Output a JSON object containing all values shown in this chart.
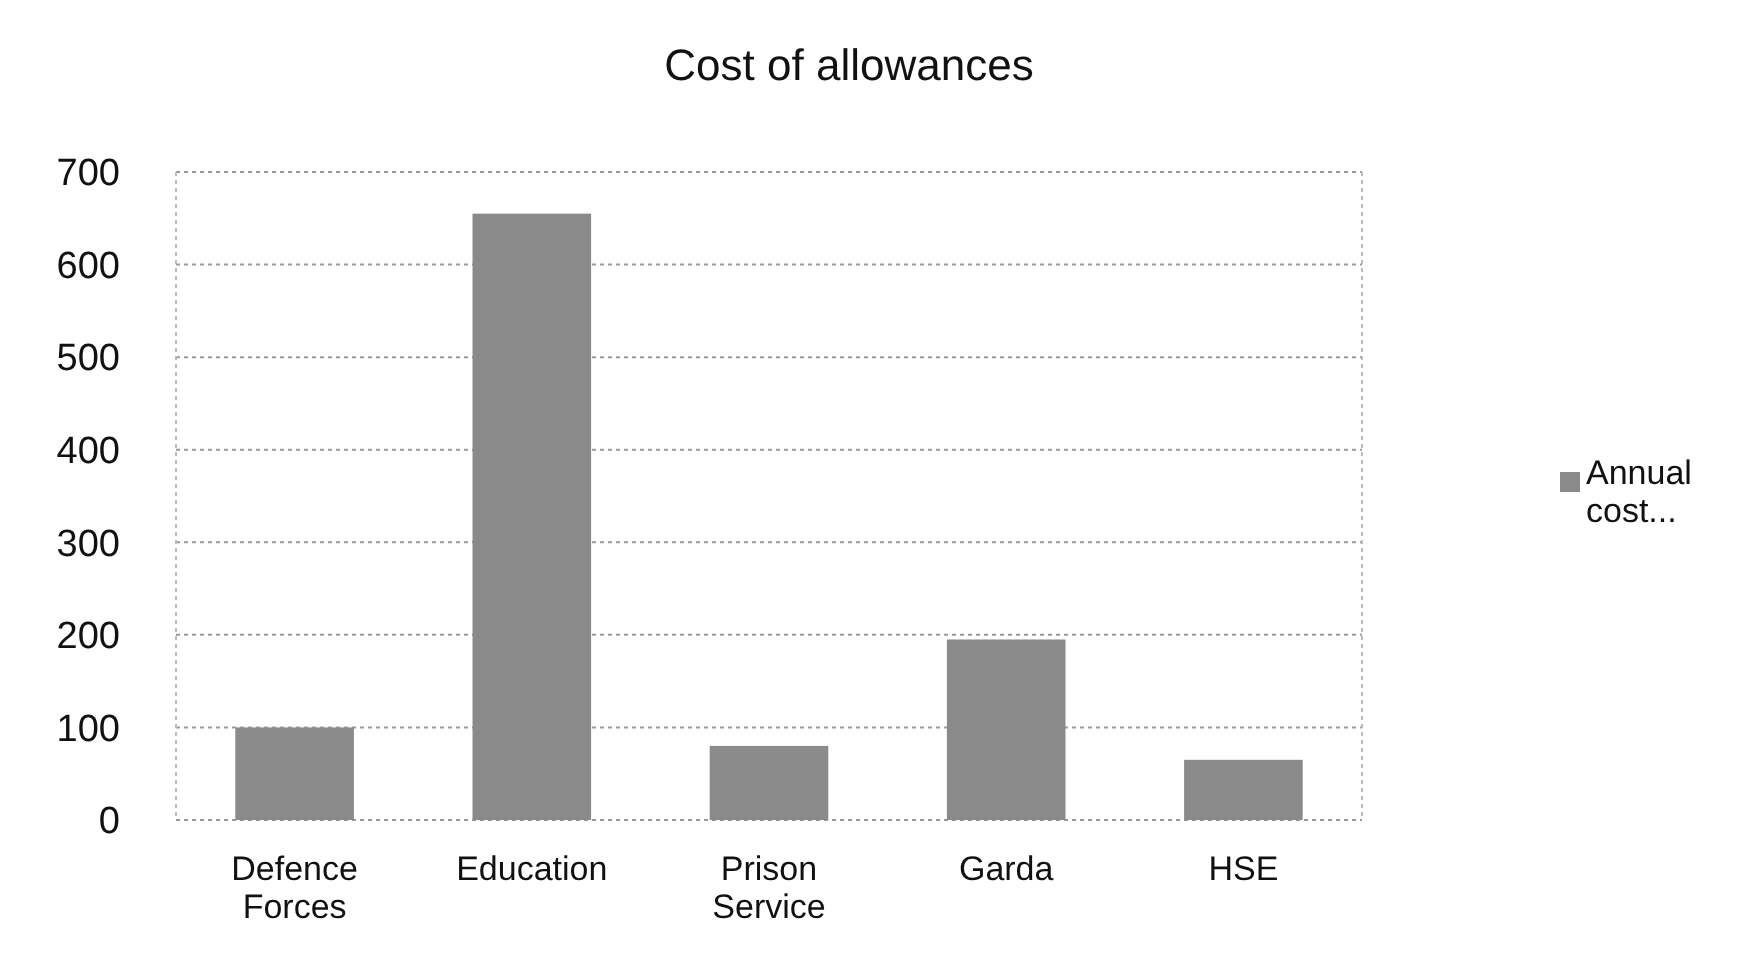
{
  "chart_data": {
    "type": "bar",
    "title": "Cost of allowances",
    "categories": [
      "Defence Forces",
      "Education",
      "Prison Service",
      "Garda",
      "HSE"
    ],
    "series": [
      {
        "name": "Annual cost...",
        "color": "#8a8a8a",
        "values": [
          100,
          655,
          80,
          195,
          65
        ]
      }
    ],
    "ylim": [
      0,
      700
    ],
    "yticks": [
      0,
      100,
      200,
      300,
      400,
      500,
      600,
      700
    ],
    "grid": "y",
    "legend": "right"
  }
}
